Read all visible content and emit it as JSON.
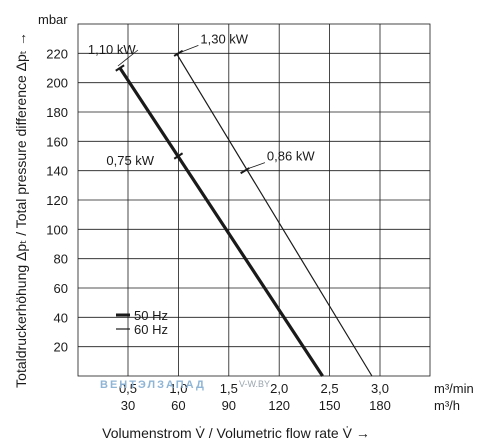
{
  "chart_data": {
    "type": "line",
    "y_unit": "mbar",
    "ylabel": "Totaldruckerhöhung Δpₜ / Total pressure difference Δpₜ →",
    "xlabel": "Volumenstrom V̇ / Volumetric flow rate V̇ →",
    "ylim": [
      0,
      240
    ],
    "yticks": [
      20,
      40,
      60,
      80,
      100,
      120,
      140,
      160,
      180,
      200,
      220
    ],
    "xlim": [
      0,
      3.5
    ],
    "x_primary_unit": "m³/min",
    "x_primary_ticks": [
      {
        "value": 0.5,
        "label": "0,5"
      },
      {
        "value": 1.0,
        "label": "1,0"
      },
      {
        "value": 1.5,
        "label": "1,5"
      },
      {
        "value": 2.0,
        "label": "2,0"
      },
      {
        "value": 2.5,
        "label": "2,5"
      },
      {
        "value": 3.0,
        "label": "3,0"
      }
    ],
    "x_secondary_unit": "m³/h",
    "x_secondary_ticks": [
      {
        "value": 0.5,
        "label": "30"
      },
      {
        "value": 1.0,
        "label": "60"
      },
      {
        "value": 1.5,
        "label": "90"
      },
      {
        "value": 2.0,
        "label": "120"
      },
      {
        "value": 2.5,
        "label": "150"
      },
      {
        "value": 3.0,
        "label": "180"
      }
    ],
    "grid": true,
    "legend_position": "bottom-left",
    "series": [
      {
        "name": "50 Hz",
        "x": [
          0.42,
          2.43
        ],
        "y": [
          210,
          0
        ],
        "style": "bold",
        "color": "#1a1a1a"
      },
      {
        "name": "60 Hz",
        "x": [
          0.98,
          2.92
        ],
        "y": [
          220,
          0
        ],
        "style": "thin",
        "color": "#1a1a1a"
      }
    ],
    "annotations": [
      {
        "label": "1,10 kW",
        "series": 0,
        "x": 0.42,
        "y": 210
      },
      {
        "label": "0,75 kW",
        "series": 0,
        "x": 1.0,
        "y": 150
      },
      {
        "label": "1,30 kW",
        "series": 1,
        "x": 1.0,
        "y": 220
      },
      {
        "label": "0,86 kW",
        "series": 1,
        "x": 1.66,
        "y": 140
      }
    ]
  },
  "watermark": {
    "text": "ВЕНТЭЛЗАПАД",
    "suffix": "V-W.BY"
  }
}
